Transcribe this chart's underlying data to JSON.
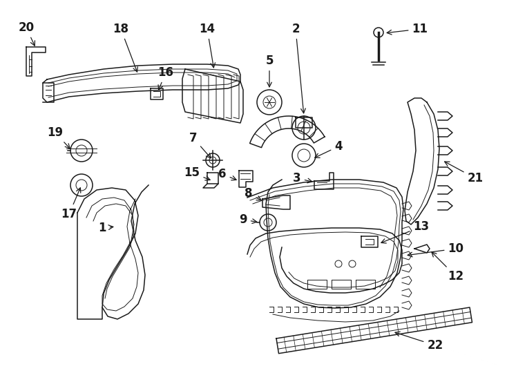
{
  "bg_color": "#ffffff",
  "line_color": "#1a1a1a",
  "label_fontsize": 12,
  "figsize": [
    7.34,
    5.4
  ],
  "dpi": 100
}
